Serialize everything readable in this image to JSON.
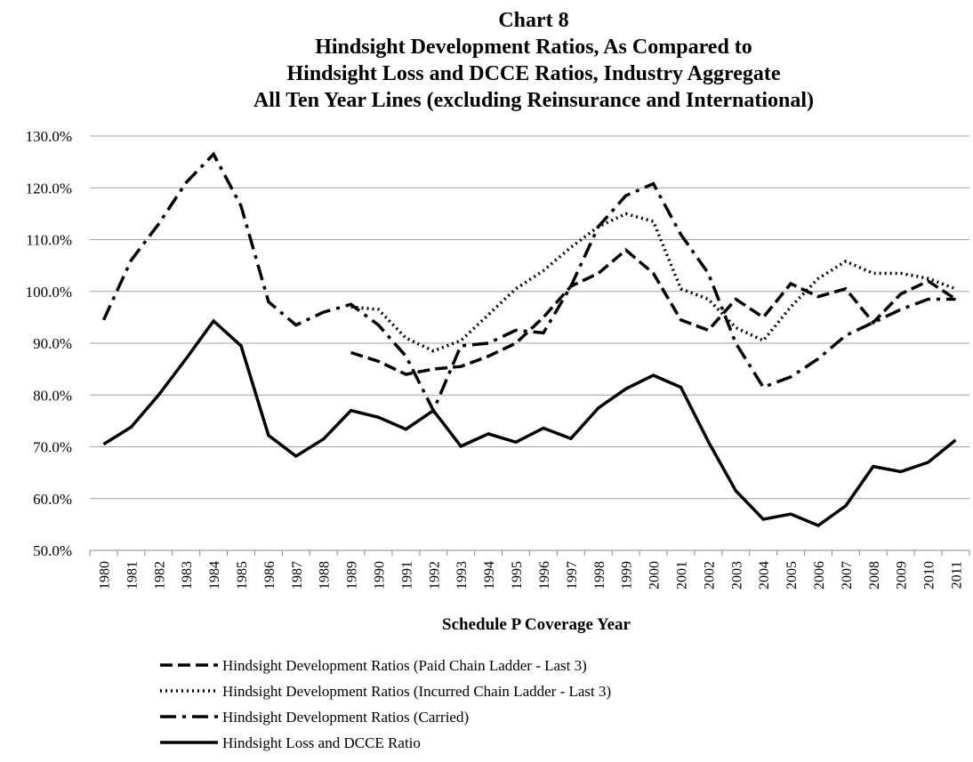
{
  "chart_data": {
    "type": "line",
    "title": [
      "Chart 8",
      "Hindsight Development Ratios, As Compared to",
      "Hindsight Loss and DCCE Ratios, Industry Aggregate",
      "All Ten Year Lines (excluding Reinsurance and International)"
    ],
    "x_label": "Schedule P Coverage Year",
    "categories": [
      "1980",
      "1981",
      "1982",
      "1983",
      "1984",
      "1985",
      "1986",
      "1987",
      "1988",
      "1989",
      "1990",
      "1991",
      "1992",
      "1993",
      "1994",
      "1995",
      "1996",
      "1997",
      "1998",
      "1999",
      "2000",
      "2001",
      "2002",
      "2003",
      "2004",
      "2005",
      "2006",
      "2007",
      "2008",
      "2009",
      "2010",
      "2011"
    ],
    "ylim": [
      50,
      130
    ],
    "yticks": [
      {
        "value": 50,
        "label": "50.0%"
      },
      {
        "value": 60,
        "label": "60.0%"
      },
      {
        "value": 70,
        "label": "70.0%"
      },
      {
        "value": 80,
        "label": "80.0%"
      },
      {
        "value": 90,
        "label": "90.0%"
      },
      {
        "value": 100,
        "label": "100.0%"
      },
      {
        "value": 110,
        "label": "110.0%"
      },
      {
        "value": 120,
        "label": "120.0%"
      },
      {
        "value": 130,
        "label": "130.0%"
      }
    ],
    "grid": true,
    "legend": "bottom",
    "series": [
      {
        "name": "Hindsight Development Ratios (Paid Chain Ladder - Last 3)",
        "color": "#000000",
        "dash": "dashed",
        "values": [
          null,
          null,
          null,
          null,
          null,
          null,
          null,
          null,
          null,
          88.2,
          86.5,
          84,
          85,
          85.5,
          87.5,
          90,
          95,
          101,
          103.5,
          108,
          103.5,
          94.5,
          92.5,
          98.5,
          95,
          101.5,
          99,
          100.5,
          94,
          99.5,
          102,
          98.5
        ]
      },
      {
        "name": "Hindsight Development Ratios (Incurred Chain Ladder - Last 3)",
        "color": "#000000",
        "dash": "dotted",
        "values": [
          null,
          null,
          null,
          null,
          null,
          null,
          null,
          null,
          null,
          97,
          96.5,
          91,
          88.5,
          90.5,
          95.5,
          100.5,
          104,
          108.5,
          112.5,
          115,
          113.5,
          100.5,
          98.5,
          93,
          90.5,
          97,
          102.5,
          105.8,
          103.5,
          103.5,
          102.5,
          100.5
        ]
      },
      {
        "name": "Hindsight Development Ratios (Carried)",
        "color": "#000000",
        "dash": "dashdot",
        "values": [
          94.5,
          106,
          113,
          121,
          126.5,
          116.5,
          98,
          93.5,
          96,
          97.5,
          93.5,
          87.5,
          77,
          89.5,
          90,
          92.5,
          92,
          101,
          112.5,
          118.5,
          120.8,
          111,
          103.5,
          90,
          81.5,
          83.5,
          87,
          91.5,
          94,
          96.5,
          98.5,
          98.5
        ]
      },
      {
        "name": "Hindsight Loss and DCCE Ratio",
        "color": "#000000",
        "dash": "solid",
        "values": [
          70.5,
          73.8,
          80,
          87,
          94.3,
          89.5,
          72.2,
          68.2,
          71.5,
          77,
          75.7,
          73.4,
          77,
          70.1,
          72.5,
          70.9,
          73.6,
          71.6,
          77.5,
          81.2,
          83.8,
          81.5,
          71,
          61.5,
          56,
          57,
          54.8,
          58.6,
          66.2,
          65.2,
          67,
          71.3
        ]
      }
    ]
  }
}
